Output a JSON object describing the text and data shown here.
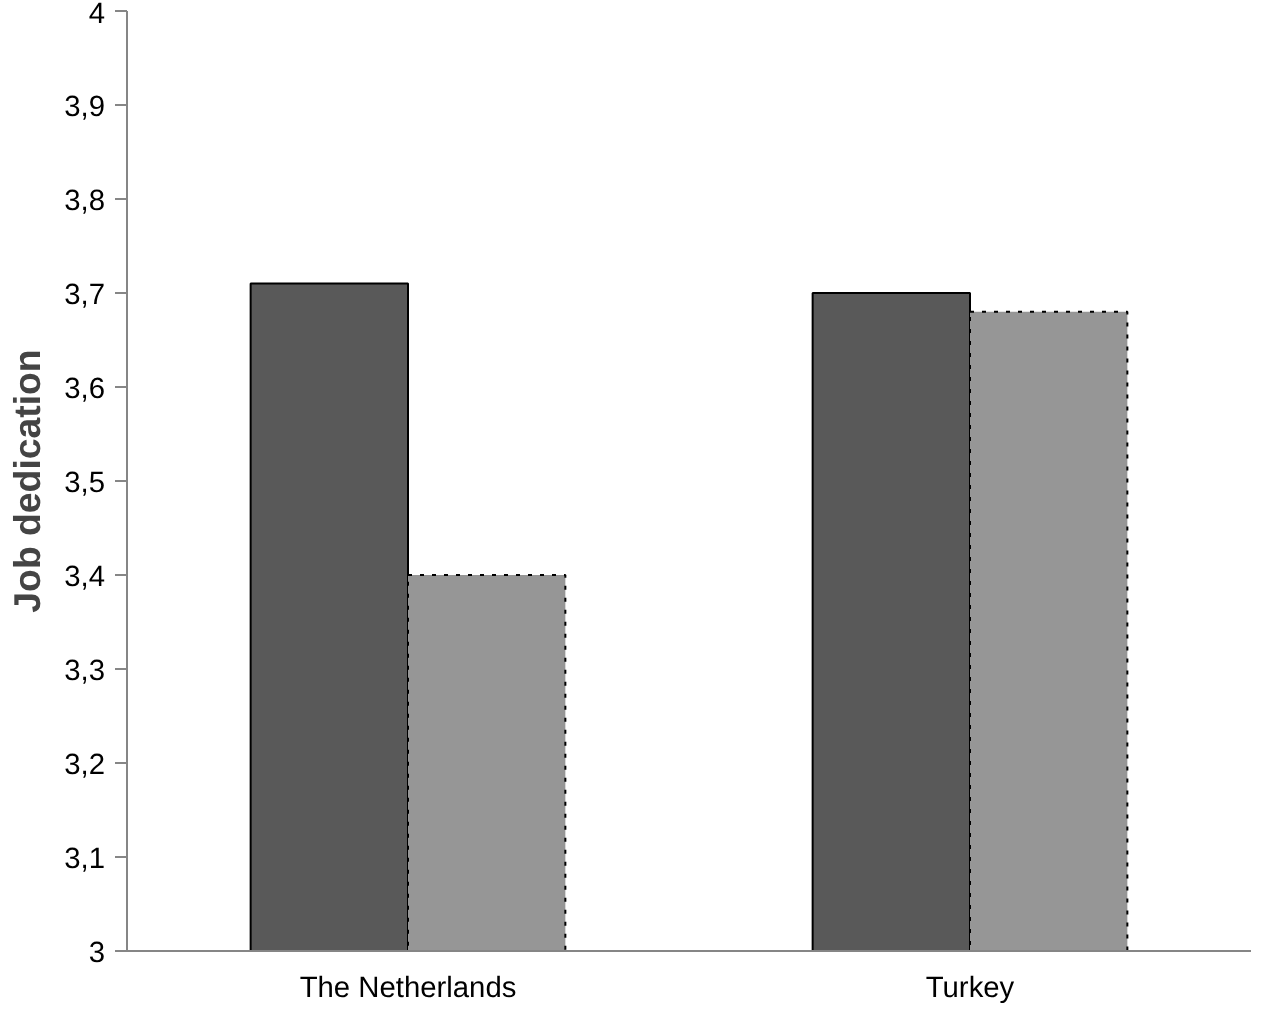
{
  "chart_data": {
    "type": "bar",
    "ylabel": "Job dedication",
    "categories": [
      "The Netherlands",
      "Turkey"
    ],
    "series": [
      {
        "color": "#595959",
        "values": [
          3.71,
          3.7
        ],
        "line_style": "solid"
      },
      {
        "color": "#969696",
        "values": [
          3.4,
          3.68
        ],
        "line_style": "dotted"
      }
    ],
    "ylim": [
      3,
      4
    ],
    "yticks": [
      3,
      {
        "value": 3.1,
        "label": "3,1"
      },
      {
        "value": 3.2,
        "label": "3,2"
      },
      {
        "value": 3.3,
        "label": "3,3"
      },
      {
        "value": 3.4,
        "label": "3,4"
      },
      {
        "value": 3.5,
        "label": "3,5"
      },
      {
        "value": 3.6,
        "label": "3,6"
      },
      {
        "value": 3.7,
        "label": "3,7"
      },
      {
        "value": 3.8,
        "label": "3,8"
      },
      {
        "value": 3.9,
        "label": "3,9"
      },
      4
    ],
    "grid": false
  }
}
